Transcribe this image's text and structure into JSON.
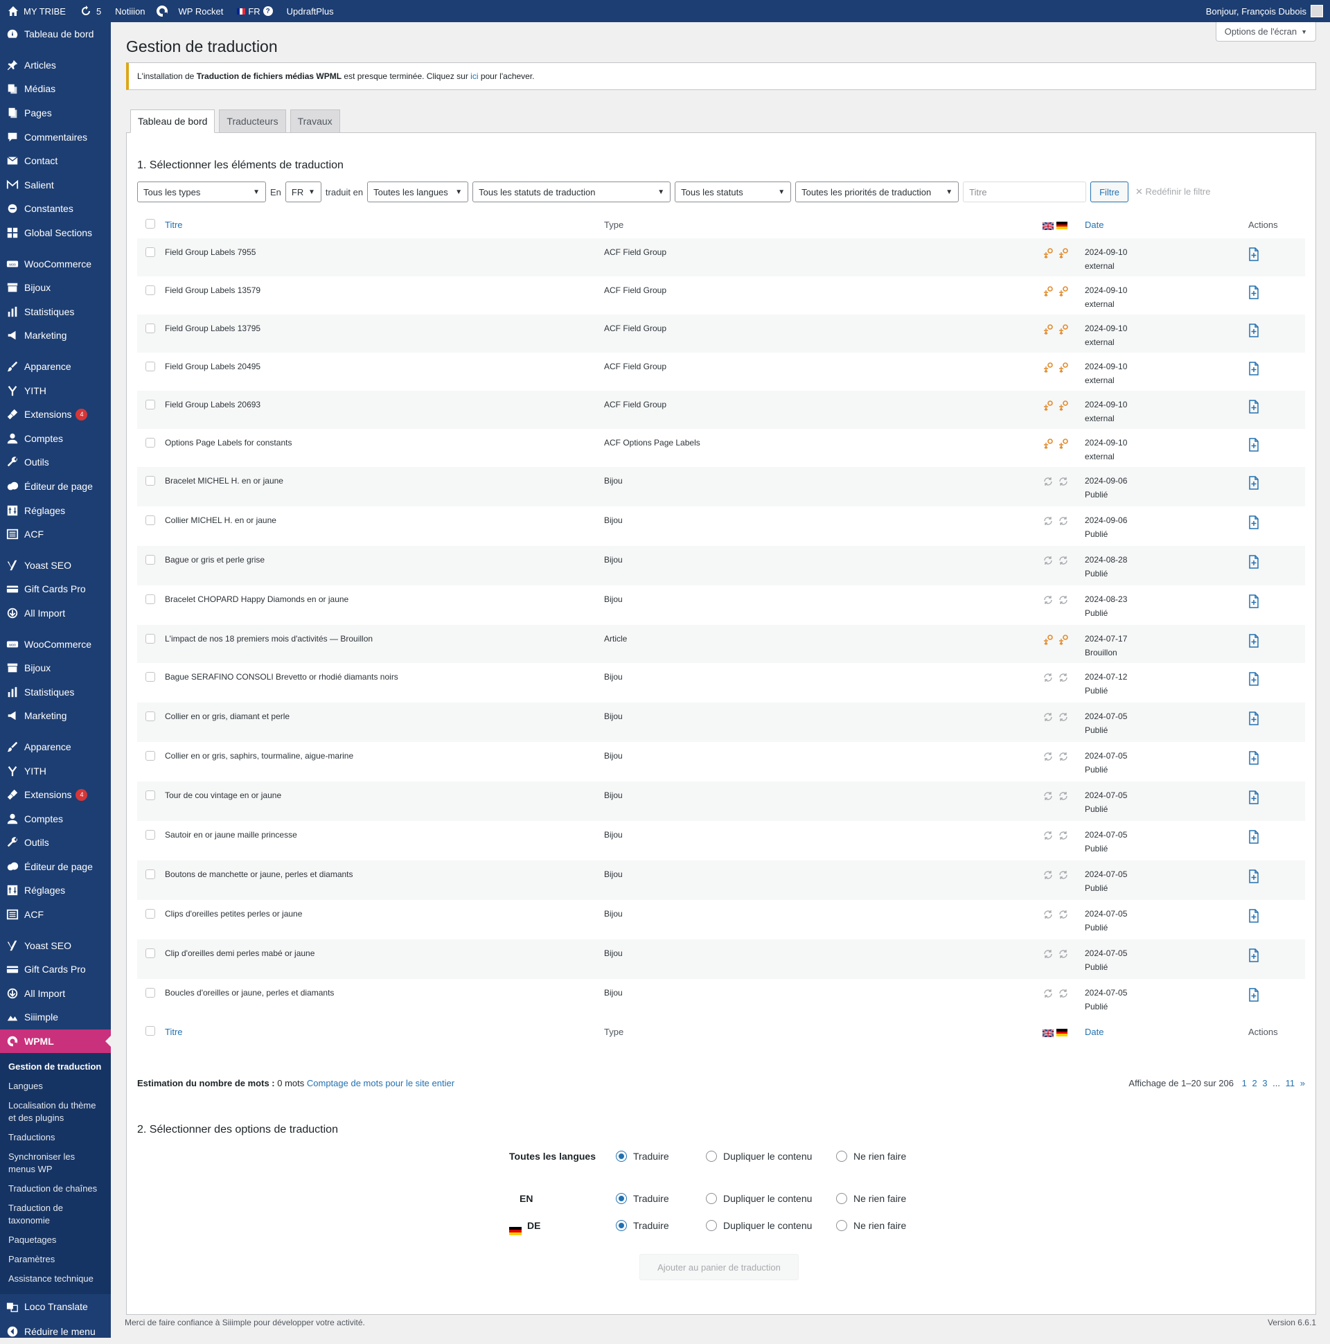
{
  "adminbar": {
    "site_name": "MY TRIBE",
    "updates_count": "5",
    "items": [
      "Notiiion",
      "WP Rocket",
      "UpdraftPlus"
    ],
    "lang": "FR",
    "greeting": "Bonjour, François Dubois"
  },
  "sidebar": {
    "items": [
      {
        "label": "Tableau de bord",
        "icon": "dashboard-icon"
      },
      {
        "label": "Articles",
        "icon": "pin-icon"
      },
      {
        "label": "Médias",
        "icon": "media-icon"
      },
      {
        "label": "Pages",
        "icon": "pages-icon"
      },
      {
        "label": "Commentaires",
        "icon": "comments-icon"
      },
      {
        "label": "Contact",
        "icon": "mail-icon"
      },
      {
        "label": "Salient",
        "icon": "salient-icon"
      },
      {
        "label": "Constantes",
        "icon": "constants-icon"
      },
      {
        "label": "Global Sections",
        "icon": "grid-icon"
      },
      {
        "label": "WooCommerce",
        "icon": "woo-icon"
      },
      {
        "label": "Bijoux",
        "icon": "archive-icon"
      },
      {
        "label": "Statistiques",
        "icon": "chart-icon"
      },
      {
        "label": "Marketing",
        "icon": "megaphone-icon"
      },
      {
        "label": "Apparence",
        "icon": "brush-icon"
      },
      {
        "label": "YITH",
        "icon": "yith-icon"
      },
      {
        "label": "Extensions",
        "icon": "plugin-icon",
        "badge": "4"
      },
      {
        "label": "Comptes",
        "icon": "user-icon"
      },
      {
        "label": "Outils",
        "icon": "wrench-icon"
      },
      {
        "label": "Éditeur de page",
        "icon": "cloud-icon"
      },
      {
        "label": "Réglages",
        "icon": "settings-icon"
      },
      {
        "label": "ACF",
        "icon": "acf-icon"
      },
      {
        "label": "Yoast SEO",
        "icon": "yoast-icon"
      },
      {
        "label": "Gift Cards Pro",
        "icon": "giftcard-icon"
      },
      {
        "label": "All Import",
        "icon": "import-icon"
      },
      {
        "label": "WooCommerce",
        "icon": "woo-icon"
      },
      {
        "label": "Bijoux",
        "icon": "archive-icon"
      },
      {
        "label": "Statistiques",
        "icon": "chart-icon"
      },
      {
        "label": "Marketing",
        "icon": "megaphone-icon"
      },
      {
        "label": "Apparence",
        "icon": "brush-icon"
      },
      {
        "label": "YITH",
        "icon": "yith-icon"
      },
      {
        "label": "Extensions",
        "icon": "plugin-icon",
        "badge": "4"
      },
      {
        "label": "Comptes",
        "icon": "user-icon"
      },
      {
        "label": "Outils",
        "icon": "wrench-icon"
      },
      {
        "label": "Éditeur de page",
        "icon": "cloud-icon"
      },
      {
        "label": "Réglages",
        "icon": "settings-icon"
      },
      {
        "label": "ACF",
        "icon": "acf-icon"
      },
      {
        "label": "Yoast SEO",
        "icon": "yoast-icon"
      },
      {
        "label": "Gift Cards Pro",
        "icon": "giftcard-icon"
      },
      {
        "label": "All Import",
        "icon": "import-icon"
      },
      {
        "label": "Siiimple",
        "icon": "siiimple-icon"
      },
      {
        "label": "WPML",
        "icon": "wpml-icon"
      }
    ],
    "submenu": [
      "Gestion de traduction",
      "Langues",
      "Localisation du thème et des plugins",
      "Traductions",
      "Synchroniser les menus WP",
      "Traduction de chaînes",
      "Traduction de taxonomie",
      "Paquetages",
      "Paramètres",
      "Assistance technique"
    ],
    "bottom": [
      {
        "label": "Loco Translate",
        "icon": "loco-icon"
      },
      {
        "label": "Réduire le menu",
        "icon": "collapse-icon"
      }
    ]
  },
  "page": {
    "screen_options": "Options de l'écran",
    "title": "Gestion de traduction",
    "notice_prefix": "L'installation de ",
    "notice_strong": "Traduction de fichiers médias WPML",
    "notice_middle": " est presque terminée. Cliquez sur ",
    "notice_link": "ici",
    "notice_suffix": " pour l'achever.",
    "tabs": [
      "Tableau de bord",
      "Traducteurs",
      "Travaux"
    ]
  },
  "section1": {
    "title": "1. Sélectionner les éléments de traduction",
    "filters": {
      "types": "Tous les types",
      "en_label": "En",
      "source_lang": "FR",
      "translated_in": "traduit en",
      "languages": "Toutes les langues",
      "translation_statuses": "Tous les statuts de traduction",
      "statuses": "Tous les statuts",
      "priorities": "Toutes les priorités de traduction",
      "title_placeholder": "Titre",
      "filter_button": "Filtre",
      "reset": "Redéfinir le filtre"
    },
    "columns": {
      "title": "Titre",
      "type": "Type",
      "date": "Date",
      "actions": "Actions"
    },
    "rows": [
      {
        "title": "Field Group Labels 7955",
        "type": "ACF Field Group",
        "date": "2024-09-10",
        "status": "external",
        "icon": "translator-icon"
      },
      {
        "title": "Field Group Labels 13579",
        "type": "ACF Field Group",
        "date": "2024-09-10",
        "status": "external",
        "icon": "translator-icon"
      },
      {
        "title": "Field Group Labels 13795",
        "type": "ACF Field Group",
        "date": "2024-09-10",
        "status": "external",
        "icon": "translator-icon"
      },
      {
        "title": "Field Group Labels 20495",
        "type": "ACF Field Group",
        "date": "2024-09-10",
        "status": "external",
        "icon": "translator-icon"
      },
      {
        "title": "Field Group Labels 20693",
        "type": "ACF Field Group",
        "date": "2024-09-10",
        "status": "external",
        "icon": "translator-icon"
      },
      {
        "title": "Options Page Labels for constants",
        "type": "ACF Options Page Labels",
        "date": "2024-09-10",
        "status": "external",
        "icon": "translator-icon"
      },
      {
        "title": "Bracelet MICHEL H. en or jaune",
        "type": "Bijou",
        "date": "2024-09-06",
        "status": "Publié",
        "icon": "refresh-icon"
      },
      {
        "title": "Collier MICHEL H. en or jaune",
        "type": "Bijou",
        "date": "2024-09-06",
        "status": "Publié",
        "icon": "refresh-icon"
      },
      {
        "title": "Bague or gris et perle grise",
        "type": "Bijou",
        "date": "2024-08-28",
        "status": "Publié",
        "icon": "refresh-icon"
      },
      {
        "title": "Bracelet CHOPARD Happy Diamonds en or jaune",
        "type": "Bijou",
        "date": "2024-08-23",
        "status": "Publié",
        "icon": "refresh-icon"
      },
      {
        "title": "L'impact de nos 18 premiers mois d'activités — Brouillon",
        "type": "Article",
        "date": "2024-07-17",
        "status": "Brouillon",
        "icon": "translator-icon"
      },
      {
        "title": "Bague SERAFINO CONSOLI Brevetto or rhodié diamants noirs",
        "type": "Bijou",
        "date": "2024-07-12",
        "status": "Publié",
        "icon": "refresh-icon"
      },
      {
        "title": "Collier en or gris, diamant et perle",
        "type": "Bijou",
        "date": "2024-07-05",
        "status": "Publié",
        "icon": "refresh-icon"
      },
      {
        "title": "Collier en or gris, saphirs, tourmaline, aigue-marine",
        "type": "Bijou",
        "date": "2024-07-05",
        "status": "Publié",
        "icon": "refresh-icon"
      },
      {
        "title": "Tour de cou vintage en or jaune",
        "type": "Bijou",
        "date": "2024-07-05",
        "status": "Publié",
        "icon": "refresh-icon"
      },
      {
        "title": "Sautoir en or jaune maille princesse",
        "type": "Bijou",
        "date": "2024-07-05",
        "status": "Publié",
        "icon": "refresh-icon"
      },
      {
        "title": "Boutons de manchette or jaune, perles et diamants",
        "type": "Bijou",
        "date": "2024-07-05",
        "status": "Publié",
        "icon": "refresh-icon"
      },
      {
        "title": "Clips d'oreilles petites perles or jaune",
        "type": "Bijou",
        "date": "2024-07-05",
        "status": "Publié",
        "icon": "refresh-icon"
      },
      {
        "title": "Clip d'oreilles demi perles mabé or jaune",
        "type": "Bijou",
        "date": "2024-07-05",
        "status": "Publié",
        "icon": "refresh-icon"
      },
      {
        "title": "Boucles d'oreilles or jaune, perles et diamants",
        "type": "Bijou",
        "date": "2024-07-05",
        "status": "Publié",
        "icon": "refresh-icon"
      }
    ],
    "wordcount_label": "Estimation du nombre de mots :",
    "wordcount_value": " 0 mots ",
    "wordcount_link": "Comptage de mots pour le site entier",
    "pagination_text": "Affichage de 1–20 sur 206",
    "pages": [
      "1",
      "2",
      "3",
      "...",
      "11",
      "»"
    ]
  },
  "section2": {
    "title": "2. Sélectionner des options de traduction",
    "rows": [
      {
        "label": "Toutes les langues",
        "selected": "Traduire"
      },
      {
        "label": "EN",
        "selected": "Traduire"
      },
      {
        "label": "DE",
        "selected": "Traduire"
      }
    ],
    "options": [
      "Traduire",
      "Dupliquer le contenu",
      "Ne rien faire"
    ],
    "submit": "Ajouter au panier de traduction"
  },
  "footer": {
    "left": "Merci de faire confiance à Siiimple pour développer votre activité.",
    "version": "Version 6.6.1"
  },
  "colors": {
    "sidebar": "#1d3e72",
    "wpml_current": "#c9317c",
    "link": "#2271b1",
    "notice_border": "#dba617",
    "translator_icon": "#e28b2a"
  }
}
